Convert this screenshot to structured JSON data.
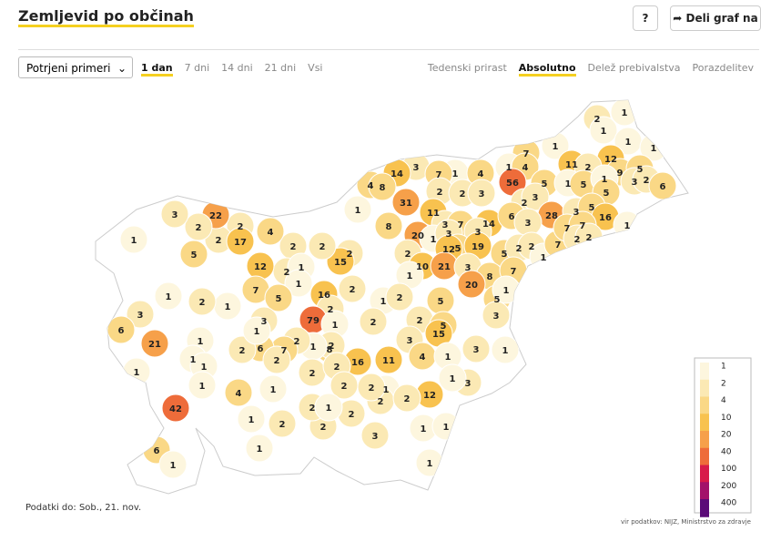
{
  "header": {
    "title": "Zemljevid po občinah",
    "help": "?",
    "share": "Deli graf na"
  },
  "controls": {
    "dropdown": "Potrjeni primeri",
    "periods": [
      "1 dan",
      "7 dni",
      "14 dni",
      "21 dni",
      "Vsi"
    ],
    "active_period": 0,
    "views": [
      "Tedenski prirast",
      "Absolutno",
      "Delež prebivalstva",
      "Porazdelitev"
    ],
    "active_view": 1
  },
  "map": {
    "values": [
      2,
      1,
      1,
      1,
      1,
      7,
      1,
      1,
      4,
      11,
      12,
      2,
      9,
      5,
      1,
      4,
      56,
      5,
      1,
      5,
      1,
      5,
      3,
      2,
      6,
      3,
      7,
      14,
      4,
      8,
      2,
      2,
      3,
      2,
      3,
      28,
      3,
      5,
      16,
      1,
      31,
      11,
      3,
      7,
      14,
      6,
      3,
      8,
      20,
      1,
      3,
      3,
      5,
      19,
      12,
      5,
      2,
      2,
      1,
      7,
      7,
      7,
      2,
      2,
      2,
      10,
      21,
      3,
      8,
      7,
      1,
      20,
      5,
      1,
      5,
      2,
      5,
      15,
      3,
      3,
      3,
      4,
      1,
      1,
      3,
      1,
      12,
      1,
      1,
      1,
      3,
      1,
      2,
      2,
      2,
      2,
      1,
      2,
      15,
      2,
      2,
      2,
      1,
      1,
      12,
      4,
      2,
      2,
      17,
      22,
      2,
      3,
      1,
      5,
      7,
      5,
      16,
      2,
      2,
      1,
      2,
      79,
      1,
      2,
      8,
      16,
      11,
      2,
      1,
      2,
      7,
      6,
      2,
      2,
      3,
      1,
      1,
      2,
      1,
      3,
      6,
      21,
      1,
      1,
      1,
      1,
      1,
      42,
      4,
      1,
      2,
      2,
      2,
      2,
      1,
      2,
      1,
      2,
      1,
      6,
      1
    ],
    "legend": {
      "ticks": [
        1,
        2,
        4,
        10,
        20,
        40,
        100,
        200,
        400
      ],
      "colors": [
        "#fdf6de",
        "#fbe9b4",
        "#fad886",
        "#f8c24f",
        "#f6a04a",
        "#ee6c3a",
        "#d81b4a",
        "#a3126a",
        "#5b0b78"
      ]
    }
  },
  "footer": {
    "date": "Podatki do: Sob., 21. nov.",
    "source": "vir podatkov: NIJZ, Ministrstvo za zdravje"
  }
}
